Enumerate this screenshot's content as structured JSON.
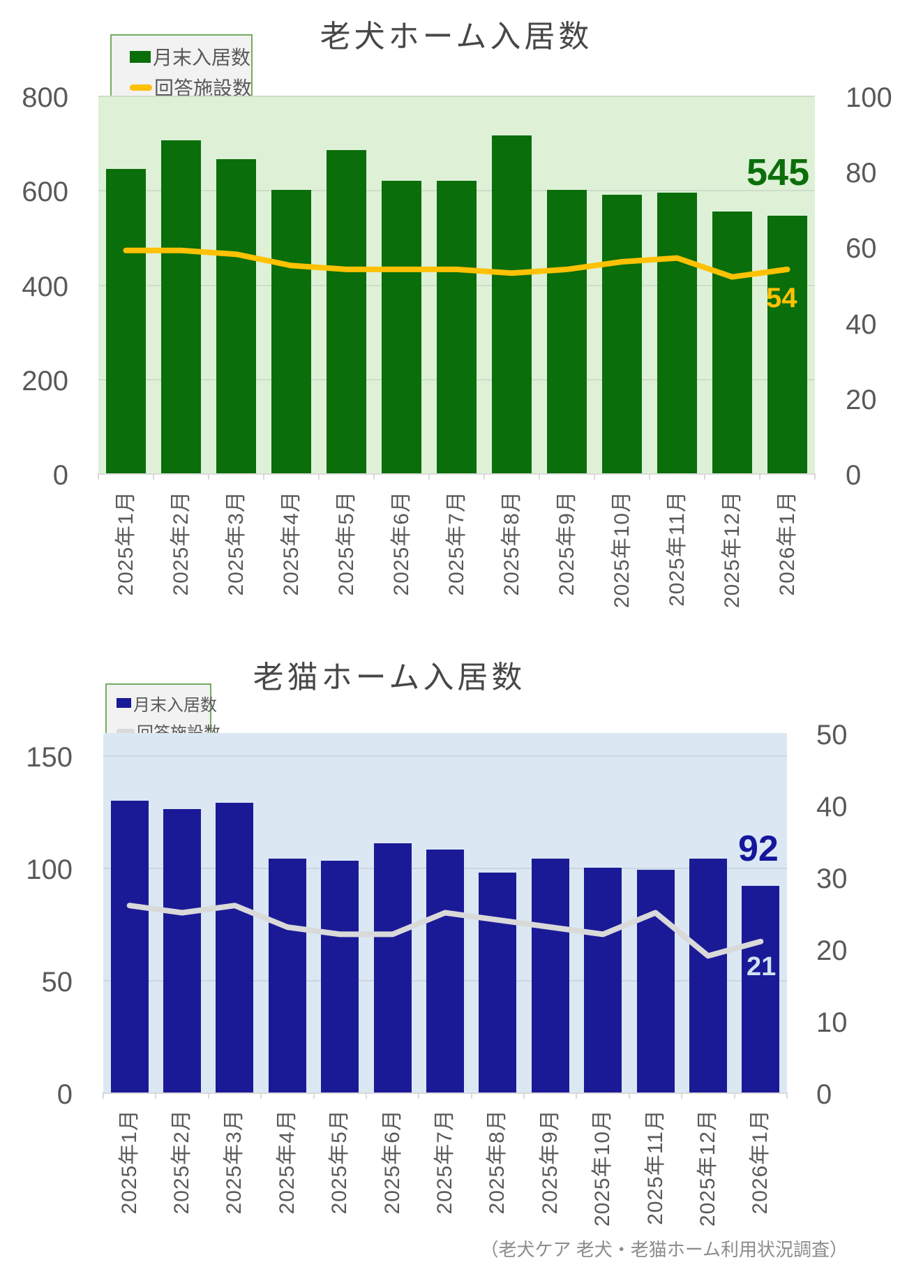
{
  "source_note": "（老犬ケア 老犬・老猫ホーム利用状況調査）",
  "chart_data": [
    {
      "type": "bar",
      "subtype": "bar-line-combo",
      "title": "老犬ホーム入居数",
      "categories": [
        "2025年1月",
        "2025年2月",
        "2025年3月",
        "2025年4月",
        "2025年5月",
        "2025年6月",
        "2025年7月",
        "2025年8月",
        "2025年9月",
        "2025年10月",
        "2025年11月",
        "2025年12月",
        "2026年1月"
      ],
      "series": [
        {
          "name": "月末入居数",
          "type": "bar",
          "axis": "left",
          "color": "#0a6e0a",
          "values": [
            645,
            705,
            665,
            600,
            685,
            620,
            620,
            715,
            600,
            590,
            595,
            555,
            545
          ]
        },
        {
          "name": "回答施設数",
          "type": "line",
          "axis": "right",
          "color": "#ffc103",
          "values": [
            59,
            59,
            58,
            55,
            54,
            54,
            54,
            53,
            54,
            56,
            57,
            52,
            54
          ]
        }
      ],
      "left_axis": {
        "ticks": [
          800,
          600,
          400,
          200,
          0
        ],
        "range": [
          0,
          800
        ]
      },
      "right_axis": {
        "ticks": [
          100,
          80,
          60,
          40,
          20,
          0
        ],
        "range": [
          0,
          100
        ]
      },
      "plot_bg": "#def1d7",
      "grid": true,
      "legend_position": "top-left",
      "end_labels": {
        "bar": {
          "text": "545",
          "color": "#0b6e0b"
        },
        "line": {
          "text": "54",
          "color": "#ffc103"
        }
      }
    },
    {
      "type": "bar",
      "subtype": "bar-line-combo",
      "title": "老猫ホーム入居数",
      "categories": [
        "2025年1月",
        "2025年2月",
        "2025年3月",
        "2025年4月",
        "2025年5月",
        "2025年6月",
        "2025年7月",
        "2025年8月",
        "2025年9月",
        "2025年10月",
        "2025年11月",
        "2025年12月",
        "2026年1月"
      ],
      "series": [
        {
          "name": "月末入居数",
          "type": "bar",
          "axis": "left",
          "color": "#1b1a96",
          "values": [
            130,
            126,
            129,
            104,
            103,
            111,
            108,
            98,
            104,
            100,
            99,
            104,
            92
          ]
        },
        {
          "name": "回答施設数",
          "type": "line",
          "axis": "right",
          "color": "#d9d9d9",
          "values": [
            26,
            25,
            26,
            23,
            22,
            22,
            25,
            24,
            23,
            22,
            25,
            19,
            21
          ]
        }
      ],
      "left_axis": {
        "ticks": [
          150,
          100,
          50,
          0
        ],
        "range": [
          0,
          160
        ]
      },
      "right_axis": {
        "ticks": [
          50,
          40,
          30,
          20,
          10,
          0
        ],
        "range": [
          0,
          50
        ]
      },
      "plot_bg": "#dbe8f4",
      "grid": true,
      "legend_position": "top-left",
      "end_labels": {
        "bar": {
          "text": "92",
          "color": "#16169c"
        },
        "line": {
          "text": "21",
          "color": "#cfe2f3"
        }
      }
    }
  ]
}
